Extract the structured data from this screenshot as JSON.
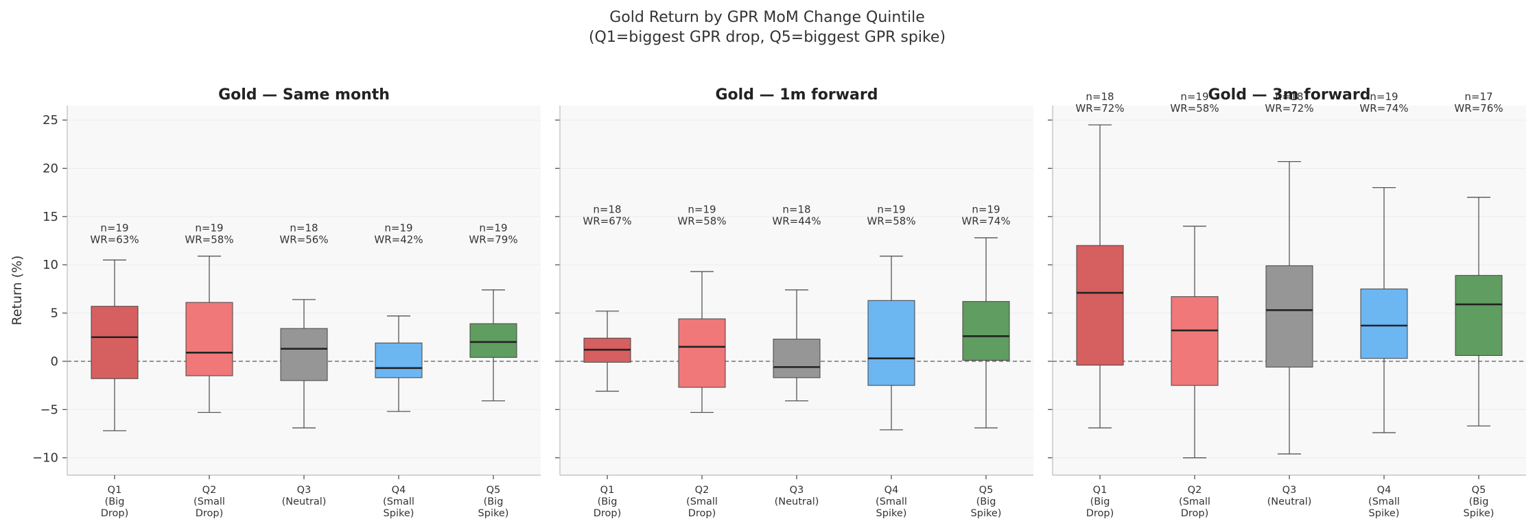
{
  "figure": {
    "title_line1": "Gold Return by GPR MoM Change Quintile",
    "title_line2": "(Q1=biggest GPR drop, Q5=biggest GPR spike)"
  },
  "colors": {
    "Q1": "#d65f5f",
    "Q2": "#f07878",
    "Q3": "#969696",
    "Q4": "#6cb6f2",
    "Q5": "#609d60",
    "median": "#222222",
    "whisker": "#555555",
    "zero_line": "#666666",
    "panel_bg": "#f8f8f8"
  },
  "chart_data": [
    {
      "type": "box",
      "title": "Gold — Same month",
      "ylabel": "Return (%)",
      "ylim": [
        -11.8,
        26.5
      ],
      "yticks": [
        -10,
        -5,
        0,
        5,
        10,
        15,
        20,
        25
      ],
      "ytick_labels": [
        "−10",
        "−5",
        "0",
        "5",
        "10",
        "15",
        "20",
        "25"
      ],
      "zero_line": true,
      "categories": [
        "Q1\n(Big\nDrop)",
        "Q2\n(Small\nDrop)",
        "Q3\n(Neutral)",
        "Q4\n(Small\nSpike)",
        "Q5\n(Big\nSpike)"
      ],
      "boxes": [
        {
          "key": "Q1",
          "whislo": -7.2,
          "q1": -1.8,
          "med": 2.5,
          "q3": 5.7,
          "whishi": 10.5,
          "n": "n=19",
          "wr": "WR=63%"
        },
        {
          "key": "Q2",
          "whislo": -5.3,
          "q1": -1.5,
          "med": 0.9,
          "q3": 6.1,
          "whishi": 10.9,
          "n": "n=19",
          "wr": "WR=58%"
        },
        {
          "key": "Q3",
          "whislo": -6.9,
          "q1": -2.0,
          "med": 1.3,
          "q3": 3.4,
          "whishi": 6.4,
          "n": "n=18",
          "wr": "WR=56%"
        },
        {
          "key": "Q4",
          "whislo": -5.2,
          "q1": -1.7,
          "med": -0.7,
          "q3": 1.9,
          "whishi": 4.7,
          "n": "n=19",
          "wr": "WR=42%"
        },
        {
          "key": "Q5",
          "whislo": -4.1,
          "q1": 0.4,
          "med": 2.0,
          "q3": 3.9,
          "whishi": 7.4,
          "n": "n=19",
          "wr": "WR=79%"
        }
      ]
    },
    {
      "type": "box",
      "title": "Gold — 1m forward",
      "ylim": [
        -11.8,
        26.5
      ],
      "zero_line": true,
      "categories": [
        "Q1\n(Big\nDrop)",
        "Q2\n(Small\nDrop)",
        "Q3\n(Neutral)",
        "Q4\n(Small\nSpike)",
        "Q5\n(Big\nSpike)"
      ],
      "boxes": [
        {
          "key": "Q1",
          "whislo": -3.1,
          "q1": -0.1,
          "med": 1.2,
          "q3": 2.4,
          "whishi": 5.2,
          "n": "n=18",
          "wr": "WR=67%"
        },
        {
          "key": "Q2",
          "whislo": -5.3,
          "q1": -2.7,
          "med": 1.5,
          "q3": 4.4,
          "whishi": 9.3,
          "n": "n=19",
          "wr": "WR=58%"
        },
        {
          "key": "Q3",
          "whislo": -4.1,
          "q1": -1.7,
          "med": -0.6,
          "q3": 2.3,
          "whishi": 7.4,
          "n": "n=18",
          "wr": "WR=44%"
        },
        {
          "key": "Q4",
          "whislo": -7.1,
          "q1": -2.5,
          "med": 0.3,
          "q3": 6.3,
          "whishi": 10.9,
          "n": "n=19",
          "wr": "WR=58%"
        },
        {
          "key": "Q5",
          "whislo": -6.9,
          "q1": 0.1,
          "med": 2.6,
          "q3": 6.2,
          "whishi": 12.8,
          "n": "n=19",
          "wr": "WR=74%"
        }
      ]
    },
    {
      "type": "box",
      "title": "Gold — 3m forward",
      "ylim": [
        -11.8,
        26.5
      ],
      "zero_line": true,
      "categories": [
        "Q1\n(Big\nDrop)",
        "Q2\n(Small\nDrop)",
        "Q3\n(Neutral)",
        "Q4\n(Small\nSpike)",
        "Q5\n(Big\nSpike)"
      ],
      "boxes": [
        {
          "key": "Q1",
          "whislo": -6.9,
          "q1": -0.4,
          "med": 7.1,
          "q3": 12.0,
          "whishi": 24.5,
          "n": "n=18",
          "wr": "WR=72%"
        },
        {
          "key": "Q2",
          "whislo": -10.0,
          "q1": -2.5,
          "med": 3.2,
          "q3": 6.7,
          "whishi": 14.0,
          "n": "n=19",
          "wr": "WR=58%"
        },
        {
          "key": "Q3",
          "whislo": -9.6,
          "q1": -0.6,
          "med": 5.3,
          "q3": 9.9,
          "whishi": 20.7,
          "n": "n=18",
          "wr": "WR=72%"
        },
        {
          "key": "Q4",
          "whislo": -7.4,
          "q1": 0.3,
          "med": 3.7,
          "q3": 7.5,
          "whishi": 18.0,
          "n": "n=19",
          "wr": "WR=74%"
        },
        {
          "key": "Q5",
          "whislo": -6.7,
          "q1": 0.6,
          "med": 5.9,
          "q3": 8.9,
          "whishi": 17.0,
          "n": "n=17",
          "wr": "WR=76%"
        }
      ]
    }
  ]
}
